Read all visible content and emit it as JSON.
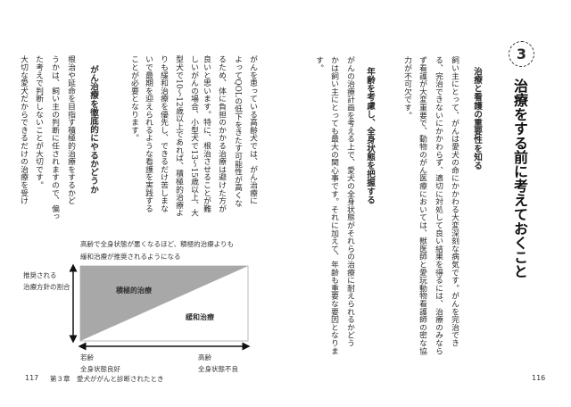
{
  "right_page": {
    "section_number": "3",
    "title": "治療をする前に考えておくこと",
    "heading1": "治療と看護の重要性を知る",
    "body1": [
      "飼い主にとって、がんは愛犬の命にかかわる大変深刻な病気です。がんを完治でき",
      "る、完治できないにかかわらず、適切に対処して良い結果を得るには、治療のみなら",
      "ず看護が大変重要で、動物のがん医療においては、獣医師と愛玩動物看護師の密な協",
      "力が不可欠です。"
    ],
    "heading2": "年齢を考慮し、全身状態を把握する",
    "body2": [
      "がんの治療計画を考える上で、愛犬の全身状態がそれらの治療に耐えられるかどう",
      "かは飼い主にとっても最大の関心事です。それに加えて、年齢も重要な要因となりま",
      "す。"
    ],
    "page_number": "116"
  },
  "left_page": {
    "body3": [
      "がんを患っている高齢犬では、がん治療に",
      "よってQOLの低下をきたす可能性が高くな",
      "るため、体に負担のかかる治療は避けた方が",
      "良いと思います。特に、根治させることが難",
      "しいがんの場合、小型犬で13～15歳以上、大",
      "型犬で10～12歳以上であれば、積極的治療よ",
      "りも緩和治療を優先し、できるだけ苦しまな",
      "いで最期を迎えられるような看護を実践する",
      "ことが必要となります。"
    ],
    "heading3": "がん治療を徹底的にやるかどうか",
    "body4": [
      "根治や延命を目指す積極的治療をするかど",
      "うかは、飼い主の判断に任されますので、偏っ",
      "た考えで判断しないことが大切です。",
      "大切な愛犬だからできるだけの治療を受け"
    ],
    "diagram": {
      "caption_line1": "高齢で全身状態が悪くなるほど、積極的治療よりも",
      "caption_line2": "緩和治療が推奨されるようになる",
      "y_label_line1": "推奨される",
      "y_label_line2": "治療方針の割合",
      "region_upper": "積極的治療",
      "region_lower": "緩和治療",
      "x_left_line1": "若齢",
      "x_left_line2": "全身状態良好",
      "x_right_line1": "高齢",
      "x_right_line2": "全身状態不良",
      "fill_color": "#a8a8a8"
    },
    "page_number": "117",
    "running_header": "第３章　愛犬ががんと診断されたとき"
  }
}
